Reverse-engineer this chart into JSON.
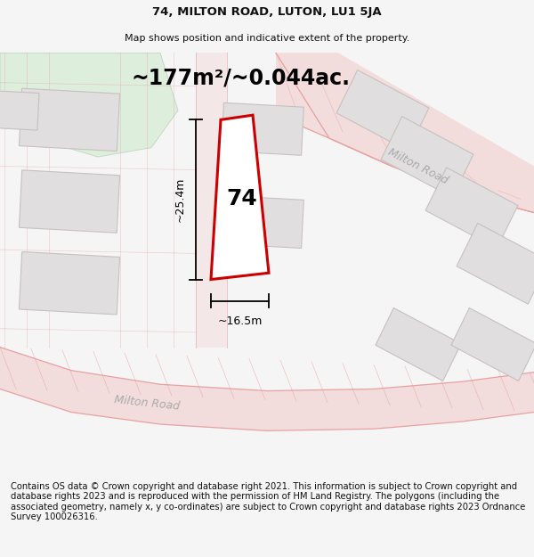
{
  "title_line1": "74, MILTON ROAD, LUTON, LU1 5JA",
  "title_line2": "Map shows position and indicative extent of the property.",
  "area_label": "~177m²/~0.044ac.",
  "property_number": "74",
  "dim_height": "~25.4m",
  "dim_width": "~16.5m",
  "road_label_lower": "Milton Road",
  "road_label_upper": "Milton Road",
  "footer_text": "Contains OS data © Crown copyright and database right 2021. This information is subject to Crown copyright and database rights 2023 and is reproduced with the permission of HM Land Registry. The polygons (including the associated geometry, namely x, y co-ordinates) are subject to Crown copyright and database rights 2023 Ordnance Survey 100026316.",
  "bg_color": "#f5f5f5",
  "map_bg_color": "#f0eeec",
  "property_fill": "#ffffff",
  "property_edge": "#cc0000",
  "road_fill": "#f2dada",
  "road_line": "#e8a0a0",
  "building_fill": "#e0dede",
  "building_edge": "#c8c0c0",
  "green_fill": "#ddeedd",
  "green_edge": "#c0d4c0"
}
